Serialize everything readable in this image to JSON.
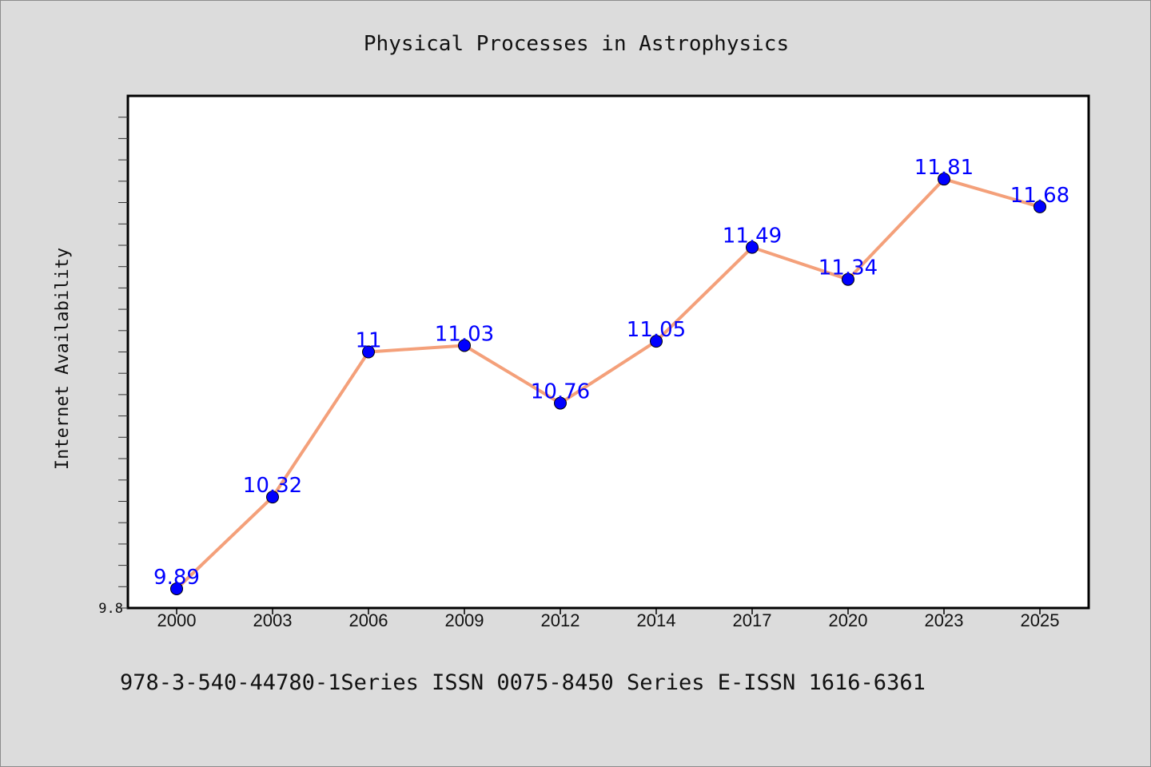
{
  "chart_data": {
    "type": "line",
    "title": "Physical Processes in Astrophysics",
    "xlabel": "",
    "ylabel": "Internet Availability",
    "categories": [
      "2000",
      "2003",
      "2006",
      "2009",
      "2012",
      "2014",
      "2017",
      "2020",
      "2023",
      "2025"
    ],
    "series": [
      {
        "values": [
          9.89,
          10.32,
          11,
          11.03,
          10.76,
          11.05,
          11.49,
          11.34,
          11.81,
          11.68
        ]
      }
    ],
    "data_labels": [
      "9.89",
      "10.32",
      "11",
      "11.03",
      "10.76",
      "11.05",
      "11.49",
      "11.34",
      "11.81",
      "11.68"
    ],
    "ylim": [
      9.8,
      12.2
    ],
    "y_tick_labels": [
      "9.8"
    ],
    "grid": false,
    "legend": "none",
    "colors": {
      "line": "#f4a07a",
      "marker": "#0000ff",
      "data_label": "#0000ff",
      "background": "#dcdcdc",
      "plot_background": "#ffffff"
    }
  },
  "footer": {
    "text": "978-3-540-44780-1Series ISSN 0075-8450 Series E-ISSN 1616-6361"
  }
}
